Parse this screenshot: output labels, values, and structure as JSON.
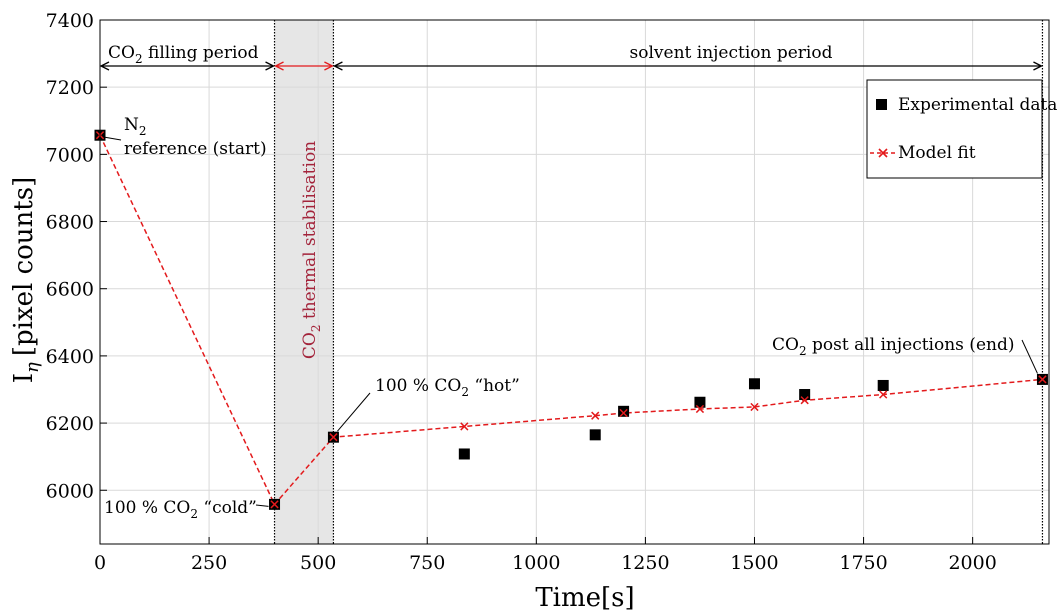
{
  "chart_data": {
    "type": "scatter",
    "xlabel": "Time[s]",
    "ylabel": "I",
    "ylabel_sub": "η",
    "ylabel_unit": "[pixel counts]",
    "xlim": [
      0,
      2175
    ],
    "ylim": [
      5840,
      7400
    ],
    "grid": true,
    "x_ticks": [
      0,
      250,
      500,
      750,
      1000,
      1250,
      1500,
      1750,
      2000
    ],
    "y_ticks": [
      6000,
      6200,
      6400,
      6600,
      6800,
      7000,
      7200,
      7400
    ],
    "legend_placement": "top-right",
    "series": [
      {
        "name": "Experimental data",
        "marker": "square",
        "color": "#000000",
        "x": [
          0,
          400,
          535,
          835,
          1135,
          1200,
          1375,
          1500,
          1615,
          1795,
          2160
        ],
        "y": [
          7057,
          5958,
          6158,
          6108,
          6165,
          6235,
          6262,
          6317,
          6285,
          6312,
          6330
        ]
      },
      {
        "name": "Model fit",
        "marker": "x",
        "line": "dashed",
        "color": "#e31a1c",
        "x": [
          0,
          400,
          535,
          835,
          1135,
          1200,
          1375,
          1500,
          1615,
          1795,
          2160
        ],
        "y": [
          7057,
          5958,
          6158,
          6190,
          6222,
          6230,
          6242,
          6248,
          6268,
          6285,
          6330
        ]
      }
    ],
    "vertical_lines": [
      400,
      535,
      2160
    ],
    "shaded_region": {
      "from": 400,
      "to": 535,
      "color": "#e6e6e6"
    },
    "periods": [
      {
        "label_main": "CO",
        "label_sub": "2",
        "label_rest": " filling period",
        "from": 0,
        "to": 400,
        "color": "#000000"
      },
      {
        "label": "",
        "from": 400,
        "to": 535,
        "color": "#e31a1c"
      },
      {
        "label": "solvent injection period",
        "from": 535,
        "to": 2160,
        "color": "#000000"
      }
    ],
    "annotations": {
      "n2_line1_main": "N",
      "n2_line1_sub": "2",
      "n2_line2": "reference (start)",
      "cold_pre": "100 % CO",
      "cold_sub": "2",
      "cold_post": " “cold”",
      "hot_pre": "100 % CO",
      "hot_sub": "2",
      "hot_post": " “hot”",
      "end_pre": "CO",
      "end_sub": "2",
      "end_post": " post all injections (end)",
      "stab_pre": "CO",
      "stab_sub": "2",
      "stab_post": " thermal stabilisation",
      "stab_color": "#a3233a"
    }
  }
}
